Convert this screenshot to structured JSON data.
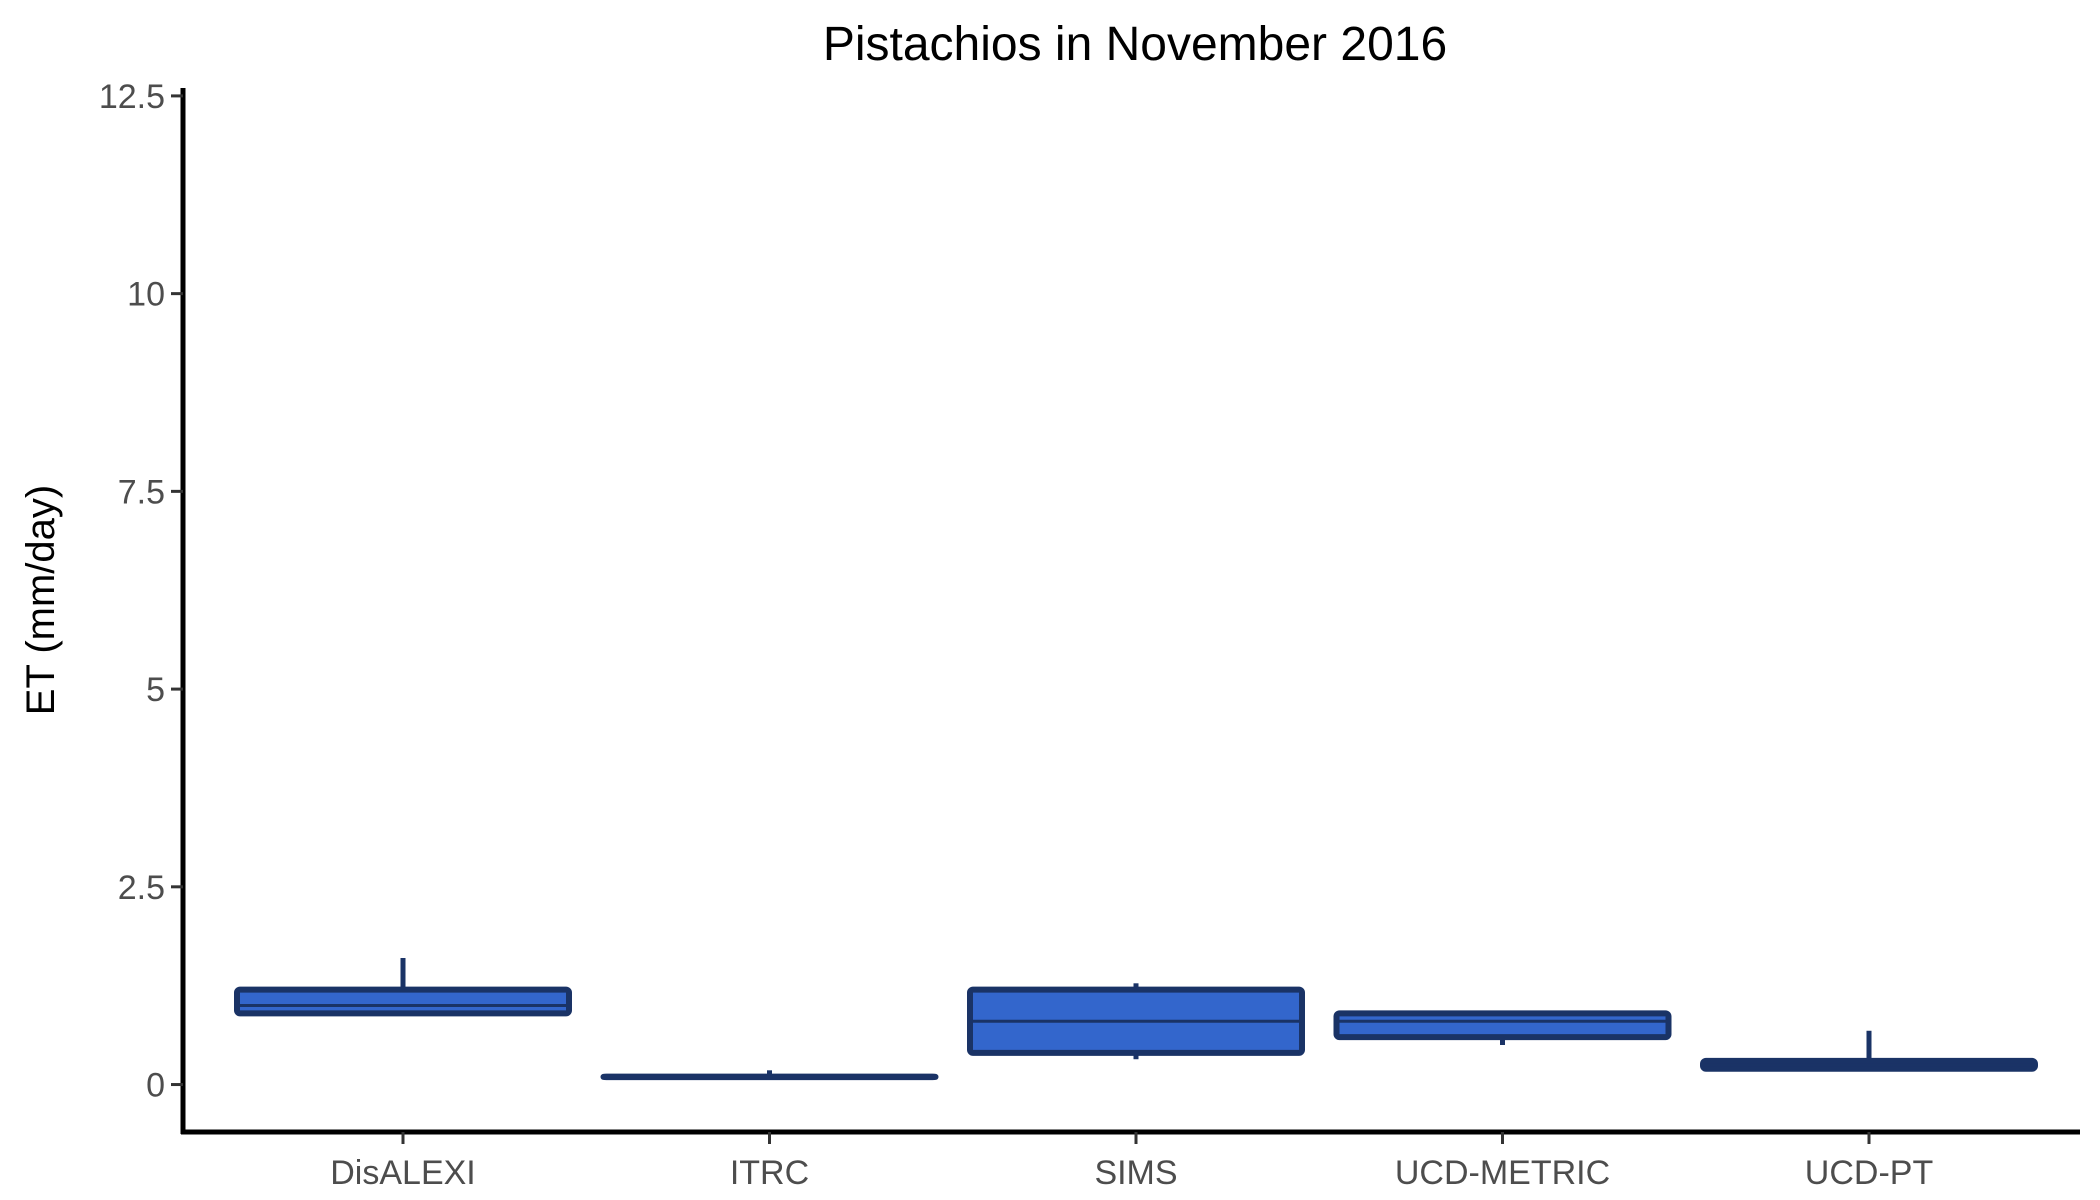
{
  "chart_data": {
    "type": "boxplot",
    "title": "Pistachios in November 2016",
    "xlabel": "",
    "ylabel": "ET (mm/day)",
    "ylim": [
      -0.6,
      12.6
    ],
    "y_ticks": [
      0,
      2.5,
      5,
      7.5,
      10,
      12.5
    ],
    "y_tick_labels": [
      "0",
      "2.5",
      "5",
      "7.5",
      "10",
      "12.5"
    ],
    "categories": [
      "DisALEXI",
      "ITRC",
      "SIMS",
      "UCD-METRIC",
      "UCD-PT"
    ],
    "boxes": [
      {
        "category": "DisALEXI",
        "min": 0.9,
        "q1": 0.9,
        "median": 1.0,
        "q3": 1.2,
        "max": 1.6
      },
      {
        "category": "ITRC",
        "min": 0.1,
        "q1": 0.1,
        "median": 0.1,
        "q3": 0.1,
        "max": 0.18
      },
      {
        "category": "SIMS",
        "min": 0.32,
        "q1": 0.4,
        "median": 0.8,
        "q3": 1.2,
        "max": 1.28
      },
      {
        "category": "UCD-METRIC",
        "min": 0.5,
        "q1": 0.6,
        "median": 0.8,
        "q3": 0.9,
        "max": 0.9
      },
      {
        "category": "UCD-PT",
        "min": 0.2,
        "q1": 0.2,
        "median": 0.25,
        "q3": 0.3,
        "max": 0.68
      }
    ],
    "fill_color": "#3366cc",
    "stroke_color": "#1a3366",
    "grid": false,
    "legend": "none"
  }
}
